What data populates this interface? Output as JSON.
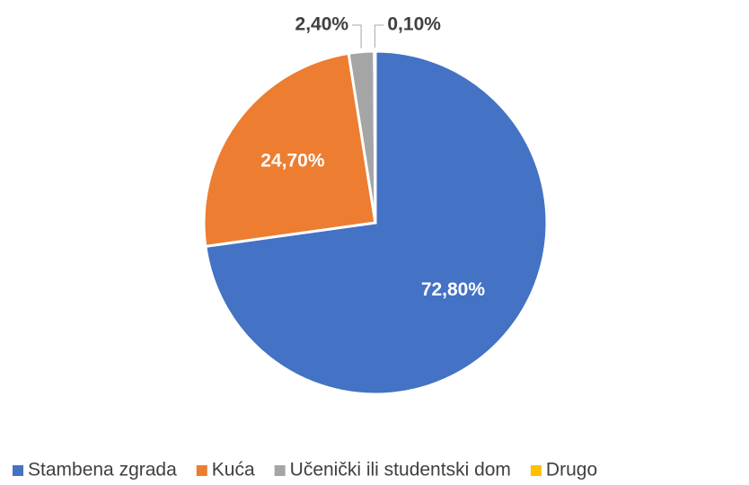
{
  "chart_data": {
    "type": "pie",
    "categories": [
      "Stambena zgrada",
      "Kuća",
      "Učenički ili studentski dom",
      "Drugo"
    ],
    "values": [
      72.8,
      24.7,
      2.4,
      0.1
    ],
    "value_labels": [
      "72,80%",
      "24,70%",
      "2,40%",
      "0,10%"
    ],
    "colors": [
      "#4472c4",
      "#ed7d31",
      "#a5a5a5",
      "#ffc000"
    ],
    "legend": "bottom"
  }
}
